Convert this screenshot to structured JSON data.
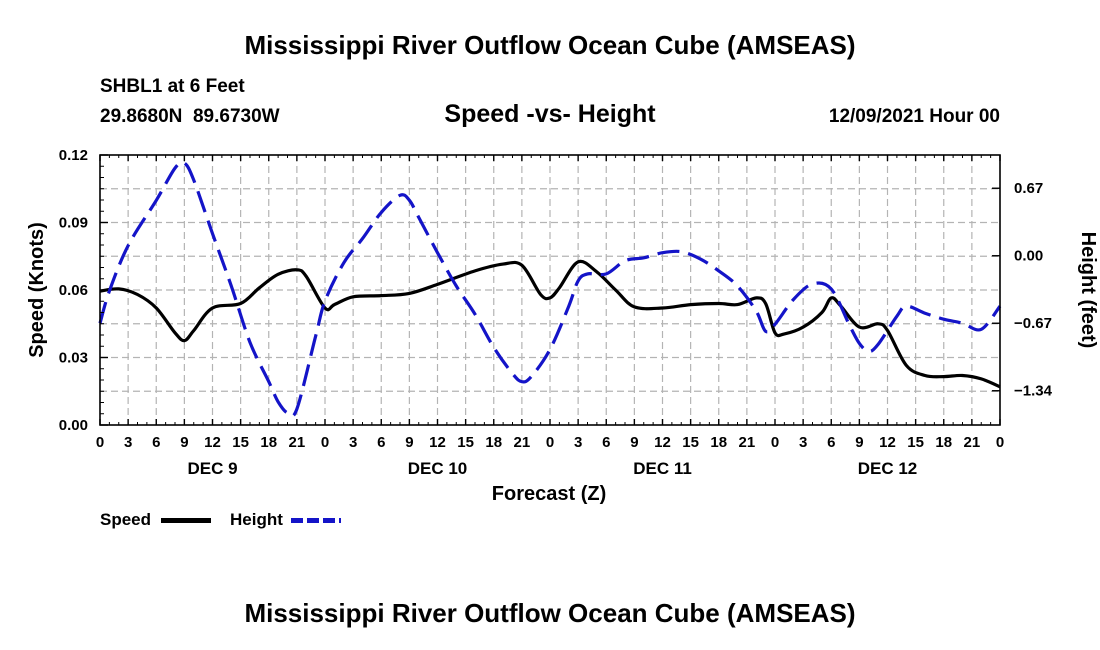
{
  "header": {
    "title": "Mississippi River Outflow Ocean Cube (AMSEAS)",
    "station": "SHBL1 at 6 Feet",
    "coords": "29.8680N  89.6730W",
    "subtitle": "Speed -vs- Height",
    "datehour": "12/09/2021 Hour 00"
  },
  "footer": {
    "title": "Mississippi River Outflow Ocean Cube (AMSEAS)"
  },
  "legend": {
    "speed": "Speed",
    "height": "Height"
  },
  "colors": {
    "speed": "#000000",
    "height": "#1414c8",
    "grid": "#b4b4b4"
  },
  "chart_data": {
    "type": "line",
    "title": "Speed -vs- Height",
    "xlabel": "Forecast (Z)",
    "ylabel": "Speed (Knots)",
    "y2label": "Height (feet)",
    "xlim": [
      0,
      96
    ],
    "ylim": [
      0,
      0.12
    ],
    "y2lim": [
      -1.68,
      1.0
    ],
    "x_tick_labels": [
      "0",
      "3",
      "6",
      "9",
      "12",
      "15",
      "18",
      "21",
      "0",
      "3",
      "6",
      "9",
      "12",
      "15",
      "18",
      "21",
      "0",
      "3",
      "6",
      "9",
      "12",
      "15",
      "18",
      "21",
      "0",
      "3",
      "6",
      "9",
      "12",
      "15",
      "18",
      "21",
      "0"
    ],
    "day_labels": [
      {
        "label": "DEC 9",
        "x": 12
      },
      {
        "label": "DEC 10",
        "x": 36
      },
      {
        "label": "DEC 11",
        "x": 60
      },
      {
        "label": "DEC 12",
        "x": 84
      }
    ],
    "y_ticks": [
      {
        "value": 0,
        "label": "0.00"
      },
      {
        "value": 0.03,
        "label": "0.03"
      },
      {
        "value": 0.06,
        "label": "0.06"
      },
      {
        "value": 0.09,
        "label": "0.09"
      },
      {
        "value": 0.12,
        "label": "0.12"
      }
    ],
    "y2_ticks": [
      {
        "value": 0.67,
        "label": "0.67"
      },
      {
        "value": 0.0,
        "label": "0.00"
      },
      {
        "value": -0.67,
        "label": "−0.67"
      },
      {
        "value": -1.34,
        "label": "−1.34"
      }
    ],
    "series": [
      {
        "name": "Speed",
        "axis": "left",
        "points": [
          [
            0,
            0.0595
          ],
          [
            2,
            0.0605
          ],
          [
            4,
            0.058
          ],
          [
            6,
            0.052
          ],
          [
            8,
            0.041
          ],
          [
            9,
            0.0375
          ],
          [
            10,
            0.042
          ],
          [
            12,
            0.052
          ],
          [
            15,
            0.054
          ],
          [
            17,
            0.061
          ],
          [
            19,
            0.067
          ],
          [
            21,
            0.069
          ],
          [
            22,
            0.066
          ],
          [
            24,
            0.052
          ],
          [
            25,
            0.0535
          ],
          [
            27,
            0.057
          ],
          [
            30,
            0.0575
          ],
          [
            33,
            0.0585
          ],
          [
            36,
            0.0625
          ],
          [
            40,
            0.0685
          ],
          [
            43,
            0.0715
          ],
          [
            45,
            0.071
          ],
          [
            47,
            0.058
          ],
          [
            48,
            0.0565
          ],
          [
            49,
            0.061
          ],
          [
            51,
            0.0725
          ],
          [
            53,
            0.068
          ],
          [
            55,
            0.06
          ],
          [
            57,
            0.0525
          ],
          [
            60,
            0.052
          ],
          [
            63,
            0.0535
          ],
          [
            66,
            0.054
          ],
          [
            68,
            0.0535
          ],
          [
            70,
            0.0565
          ],
          [
            71,
            0.054
          ],
          [
            72,
            0.041
          ],
          [
            73,
            0.0405
          ],
          [
            75,
            0.0435
          ],
          [
            77,
            0.05
          ],
          [
            78,
            0.0565
          ],
          [
            79,
            0.053
          ],
          [
            81,
            0.0435
          ],
          [
            83,
            0.045
          ],
          [
            84,
            0.042
          ],
          [
            86,
            0.0265
          ],
          [
            88,
            0.022
          ],
          [
            90,
            0.0215
          ],
          [
            92,
            0.022
          ],
          [
            94,
            0.0205
          ],
          [
            96,
            0.017
          ]
        ]
      },
      {
        "name": "Height",
        "axis": "right",
        "points": [
          [
            0,
            -0.67
          ],
          [
            1,
            -0.35
          ],
          [
            3,
            0.1
          ],
          [
            6,
            0.55
          ],
          [
            8,
            0.87
          ],
          [
            9,
            0.92
          ],
          [
            10,
            0.75
          ],
          [
            12,
            0.22
          ],
          [
            14,
            -0.3
          ],
          [
            16,
            -0.86
          ],
          [
            18,
            -1.25
          ],
          [
            19,
            -1.45
          ],
          [
            20,
            -1.56
          ],
          [
            21,
            -1.52
          ],
          [
            23,
            -0.8
          ],
          [
            24,
            -0.45
          ],
          [
            26,
            -0.07
          ],
          [
            28,
            0.17
          ],
          [
            30,
            0.43
          ],
          [
            32,
            0.6
          ],
          [
            33,
            0.55
          ],
          [
            34,
            0.38
          ],
          [
            36,
            0.03
          ],
          [
            38,
            -0.3
          ],
          [
            40,
            -0.58
          ],
          [
            42,
            -0.91
          ],
          [
            44,
            -1.17
          ],
          [
            45,
            -1.25
          ],
          [
            46,
            -1.2
          ],
          [
            48,
            -0.93
          ],
          [
            50,
            -0.5
          ],
          [
            51,
            -0.25
          ],
          [
            52,
            -0.18
          ],
          [
            54,
            -0.18
          ],
          [
            56,
            -0.05
          ],
          [
            58,
            -0.02
          ],
          [
            60,
            0.03
          ],
          [
            62,
            0.04
          ],
          [
            64,
            -0.03
          ],
          [
            66,
            -0.15
          ],
          [
            68,
            -0.3
          ],
          [
            70,
            -0.55
          ],
          [
            71,
            -0.75
          ],
          [
            72,
            -0.68
          ],
          [
            74,
            -0.43
          ],
          [
            76,
            -0.28
          ],
          [
            78,
            -0.33
          ],
          [
            80,
            -0.7
          ],
          [
            81,
            -0.87
          ],
          [
            82,
            -0.95
          ],
          [
            83,
            -0.88
          ],
          [
            85,
            -0.6
          ],
          [
            86,
            -0.5
          ],
          [
            88,
            -0.57
          ],
          [
            90,
            -0.63
          ],
          [
            92,
            -0.67
          ],
          [
            94,
            -0.73
          ],
          [
            96,
            -0.5
          ]
        ]
      }
    ]
  }
}
